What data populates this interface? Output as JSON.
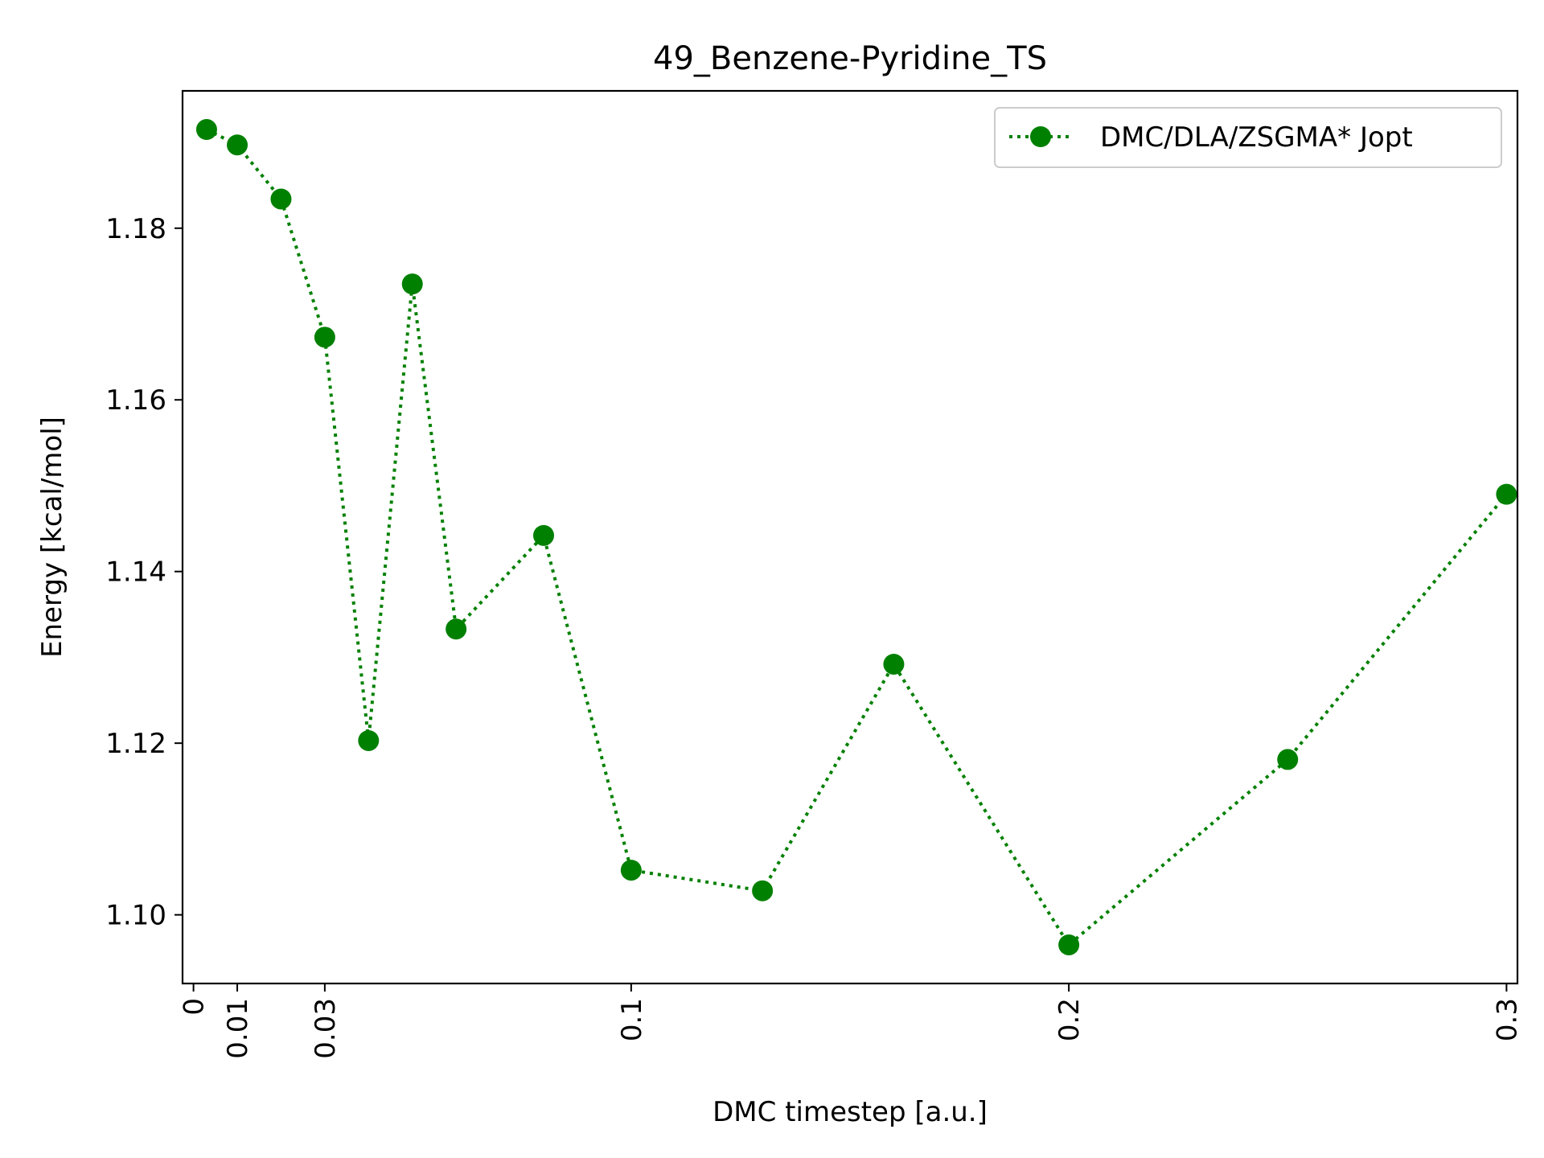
{
  "chart_data": {
    "type": "line",
    "title": "49_Benzene-Pyridine_TS",
    "xlabel": "DMC timestep [a.u.]",
    "ylabel": "Energy [kcal/mol]",
    "xlim": [
      -0.0025,
      0.3025
    ],
    "ylim": [
      1.092,
      1.196
    ],
    "x_ticks": [
      {
        "value": 0,
        "label": "0"
      },
      {
        "value": 0.01,
        "label": "0.01"
      },
      {
        "value": 0.03,
        "label": "0.03"
      },
      {
        "value": 0.1,
        "label": "0.1"
      },
      {
        "value": 0.2,
        "label": "0.2"
      },
      {
        "value": 0.3,
        "label": "0.3"
      }
    ],
    "y_ticks": [
      {
        "value": 1.1,
        "label": "1.10"
      },
      {
        "value": 1.12,
        "label": "1.12"
      },
      {
        "value": 1.14,
        "label": "1.14"
      },
      {
        "value": 1.16,
        "label": "1.16"
      },
      {
        "value": 1.18,
        "label": "1.18"
      }
    ],
    "grid": false,
    "legend_position": "top-right",
    "series": [
      {
        "name": "DMC/DLA/ZSGMA* Jopt",
        "color": "#008000",
        "line_style": "dotted",
        "marker": "circle",
        "x": [
          0.003,
          0.01,
          0.02,
          0.03,
          0.04,
          0.05,
          0.06,
          0.08,
          0.1,
          0.13,
          0.16,
          0.2,
          0.25,
          0.3
        ],
        "y": [
          1.1915,
          1.1897,
          1.1834,
          1.1673,
          1.1203,
          1.1735,
          1.1333,
          1.1442,
          1.1052,
          1.1028,
          1.1292,
          1.0965,
          1.1181,
          1.149
        ]
      }
    ]
  }
}
